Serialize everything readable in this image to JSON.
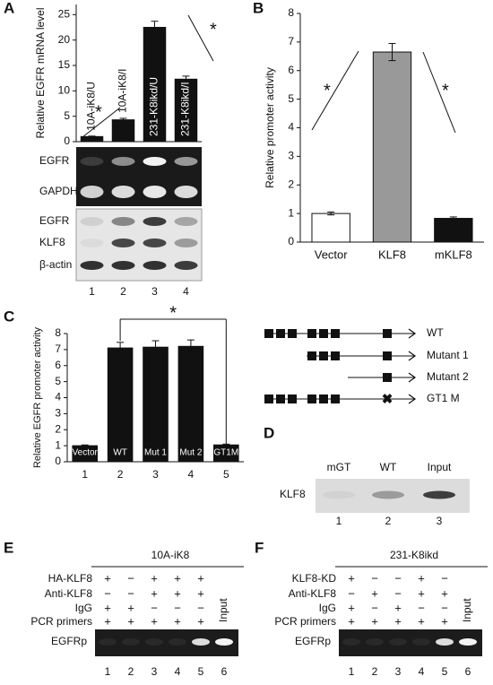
{
  "panel_labels": [
    "A",
    "B",
    "C",
    "D",
    "E",
    "F"
  ],
  "chart_data": [
    {
      "type": "bar",
      "ylabel": "Relative EGFR mRNA level",
      "categories": [
        "10A-iK8/U",
        "10A-iK8/I",
        "231-K8ikd/U",
        "231-K8ikd/I"
      ],
      "values": [
        1,
        4.3,
        22.5,
        12.3
      ],
      "errors": [
        0.1,
        0.3,
        1.2,
        0.6
      ],
      "color": "#111111",
      "ylim": [
        0,
        27
      ],
      "yticks": [
        0,
        5,
        10,
        15,
        20,
        25
      ],
      "grid": false,
      "annotations": [
        "*",
        "*"
      ]
    },
    {
      "type": "bar",
      "ylabel": "Relative promoter activity",
      "categories": [
        "Vector",
        "KLF8",
        "mKLF8"
      ],
      "values": [
        1,
        6.65,
        0.83
      ],
      "errors": [
        0.05,
        0.3,
        0.05
      ],
      "colors": [
        "#ffffff",
        "#999999",
        "#111111"
      ],
      "ylim": [
        0,
        8
      ],
      "yticks": [
        0,
        1,
        2,
        3,
        4,
        5,
        6,
        7,
        8
      ],
      "grid": false,
      "annotations": [
        "*",
        "*"
      ]
    },
    {
      "type": "bar",
      "ylabel": "Relative EGFR promoter activity",
      "categories": [
        "1",
        "2",
        "3",
        "4",
        "5"
      ],
      "bar_labels": [
        "Vector",
        "WT",
        "Mut 1",
        "Mut 2",
        "GT1M"
      ],
      "values": [
        1,
        7.1,
        7.15,
        7.2,
        1.05
      ],
      "errors": [
        0.05,
        0.35,
        0.4,
        0.4,
        0.05
      ],
      "color": "#111111",
      "ylim": [
        0,
        8
      ],
      "yticks": [
        0,
        1,
        2,
        3,
        4,
        5,
        6,
        7,
        8
      ],
      "grid": false,
      "annotations": [
        "*"
      ]
    }
  ],
  "blot_A": {
    "rows": [
      "EGFR",
      "GAPDH",
      "EGFR",
      "KLF8",
      "β-actin"
    ],
    "lanes": [
      "1",
      "2",
      "3",
      "4"
    ]
  },
  "schematic_C": {
    "constructs": [
      "WT",
      "Mutant 1",
      "Mutant 2",
      "GT1 M"
    ]
  },
  "blot_D": {
    "columns": [
      "mGT",
      "WT",
      "Input"
    ],
    "row": "KLF8",
    "lanes": [
      "1",
      "2",
      "3"
    ]
  },
  "chip_E": {
    "title": "10A-iK8",
    "rows": [
      {
        "label": "HA-KLF8",
        "signs": [
          "+",
          "−",
          "+",
          "+",
          "+"
        ]
      },
      {
        "label": "Anti-KLF8",
        "signs": [
          "−",
          "−",
          "+",
          "+",
          "+"
        ]
      },
      {
        "label": "IgG",
        "signs": [
          "+",
          "+",
          "−",
          "−",
          "−"
        ]
      },
      {
        "label": "PCR primers",
        "signs": [
          "+",
          "+",
          "+",
          "+",
          "+"
        ]
      }
    ],
    "input": "Input",
    "product": "EGFRp",
    "lanes": [
      "1",
      "2",
      "3",
      "4",
      "5",
      "6"
    ]
  },
  "chip_F": {
    "title": "231-K8ikd",
    "rows": [
      {
        "label": "KLF8-KD",
        "signs": [
          "+",
          "−",
          "−",
          "+",
          "−"
        ]
      },
      {
        "label": "Anti-KLF8",
        "signs": [
          "−",
          "+",
          "−",
          "+",
          "+"
        ]
      },
      {
        "label": "IgG",
        "signs": [
          "+",
          "−",
          "+",
          "−",
          "−"
        ]
      },
      {
        "label": "PCR primers",
        "signs": [
          "+",
          "+",
          "+",
          "+",
          "+"
        ]
      }
    ],
    "input": "Input",
    "product": "EGFRp",
    "lanes": [
      "1",
      "2",
      "3",
      "4",
      "5",
      "6"
    ]
  }
}
